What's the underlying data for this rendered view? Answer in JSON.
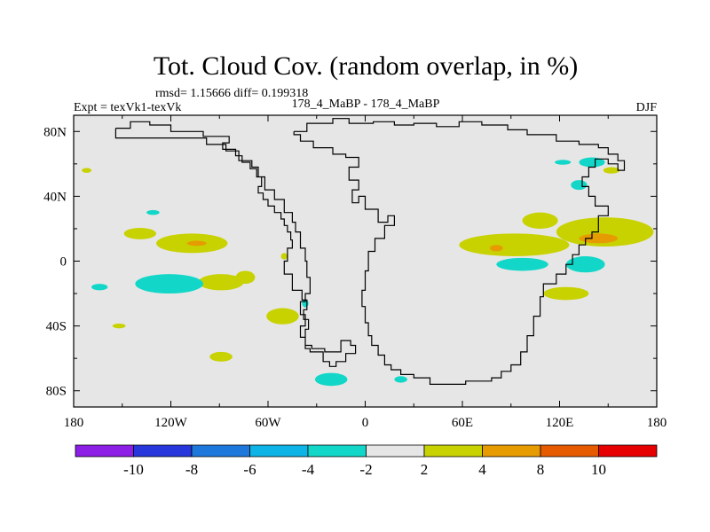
{
  "chart_data": {
    "type": "map",
    "title": "Tot. Cloud Cov. (random overlap, in %)",
    "stats_line": "rmsd= 1.15666  diff= 0.199318",
    "left_label": "Expt = texVk1-texVk",
    "center_label": "178_4_MaBP - 178_4_MaBP",
    "right_label": "DJF",
    "x_ticks": [
      "180",
      "120W",
      "60W",
      "0",
      "60E",
      "120E",
      "180"
    ],
    "x_tick_values": [
      -180,
      -120,
      -60,
      0,
      60,
      120,
      180
    ],
    "y_ticks": [
      "80N",
      "40N",
      "0",
      "40S",
      "80S"
    ],
    "y_tick_values": [
      80,
      40,
      0,
      -40,
      -80
    ],
    "lon_range": [
      -180,
      180
    ],
    "lat_range": [
      -90,
      90
    ],
    "background_color": "#e6e6e6",
    "colorbar": {
      "labels": [
        "-10",
        "-8",
        "-6",
        "-4",
        "-2",
        "2",
        "4",
        "8",
        "10"
      ],
      "colors": [
        "#8c1ee6",
        "#2837dc",
        "#1e78dc",
        "#0fb4e6",
        "#12d7c8",
        "#e6e6e6",
        "#c8d200",
        "#e69b00",
        "#e65a00",
        "#e60000"
      ]
    },
    "coastline_lonlat": [
      [
        -154,
        82
      ],
      [
        -145,
        82
      ],
      [
        -145,
        86
      ],
      [
        -133,
        86
      ],
      [
        -133,
        84
      ],
      [
        -120,
        84
      ],
      [
        -120,
        80
      ],
      [
        -100,
        80
      ],
      [
        -100,
        77
      ],
      [
        -84,
        77
      ],
      [
        -84,
        73
      ],
      [
        -88,
        73
      ],
      [
        -88,
        69
      ],
      [
        -80,
        69
      ],
      [
        -80,
        65
      ],
      [
        -76,
        65
      ],
      [
        -76,
        61
      ],
      [
        -71,
        61
      ],
      [
        -71,
        57
      ],
      [
        -67,
        57
      ],
      [
        -67,
        52
      ],
      [
        -64,
        52
      ],
      [
        -64,
        46
      ],
      [
        -66,
        46
      ],
      [
        -66,
        42
      ],
      [
        -63,
        42
      ],
      [
        -63,
        38
      ],
      [
        -60,
        38
      ],
      [
        -60,
        34
      ],
      [
        -56,
        34
      ],
      [
        -56,
        30
      ],
      [
        -52,
        30
      ],
      [
        -52,
        26
      ],
      [
        -50,
        26
      ],
      [
        -50,
        22
      ],
      [
        -48,
        22
      ],
      [
        -48,
        18
      ],
      [
        -46,
        18
      ],
      [
        -46,
        13
      ],
      [
        -45,
        13
      ],
      [
        -45,
        8
      ],
      [
        -48,
        8
      ],
      [
        -48,
        0
      ],
      [
        -50,
        0
      ],
      [
        -50,
        -8
      ],
      [
        -45,
        -8
      ],
      [
        -45,
        -18
      ],
      [
        -39,
        -18
      ],
      [
        -39,
        -24
      ],
      [
        -36,
        -24
      ],
      [
        -36,
        -30
      ],
      [
        -38,
        -30
      ],
      [
        -38,
        -36
      ],
      [
        -35,
        -36
      ],
      [
        -35,
        -42
      ],
      [
        -37,
        -42
      ],
      [
        -37,
        -52
      ],
      [
        -33,
        -52
      ],
      [
        -33,
        -54
      ],
      [
        -25,
        -54
      ],
      [
        -25,
        -56
      ],
      [
        -15,
        -56
      ],
      [
        -15,
        -49
      ],
      [
        -9,
        -49
      ],
      [
        -9,
        -52
      ],
      [
        -6,
        -52
      ],
      [
        -6,
        -57
      ],
      [
        -12,
        -57
      ],
      [
        -12,
        -62
      ],
      [
        -18,
        -62
      ],
      [
        -18,
        -65
      ],
      [
        -22,
        -65
      ],
      [
        -22,
        -62
      ],
      [
        -26,
        -62
      ],
      [
        -26,
        -56
      ],
      [
        -34,
        -56
      ],
      [
        -34,
        -54
      ],
      [
        -37,
        -54
      ],
      [
        -37,
        -47
      ],
      [
        -40,
        -47
      ],
      [
        -40,
        -40
      ],
      [
        -37,
        -40
      ],
      [
        -37,
        -33
      ],
      [
        -40,
        -33
      ],
      [
        -40,
        -25
      ],
      [
        -37,
        -25
      ],
      [
        -37,
        -20
      ],
      [
        -34,
        -20
      ],
      [
        -34,
        -10
      ],
      [
        -36,
        -10
      ],
      [
        -36,
        0
      ],
      [
        -37,
        0
      ],
      [
        -37,
        8
      ],
      [
        -40,
        8
      ],
      [
        -40,
        18
      ],
      [
        -43,
        18
      ],
      [
        -43,
        24
      ],
      [
        -45,
        24
      ],
      [
        -45,
        30
      ],
      [
        -50,
        30
      ],
      [
        -50,
        38
      ],
      [
        -56,
        38
      ],
      [
        -56,
        44
      ],
      [
        -62,
        44
      ],
      [
        -62,
        52
      ],
      [
        -66,
        52
      ],
      [
        -66,
        58
      ],
      [
        -70,
        58
      ],
      [
        -70,
        62
      ],
      [
        -78,
        62
      ],
      [
        -78,
        68
      ],
      [
        -86,
        68
      ],
      [
        -86,
        72
      ],
      [
        -98,
        72
      ],
      [
        -98,
        76
      ],
      [
        -154,
        76
      ],
      [
        -154,
        82
      ]
    ],
    "coastline2_lonlat": [
      [
        -44,
        80
      ],
      [
        -36,
        80
      ],
      [
        -36,
        85
      ],
      [
        -20,
        85
      ],
      [
        -20,
        88
      ],
      [
        -10,
        88
      ],
      [
        -10,
        85
      ],
      [
        5,
        85
      ],
      [
        5,
        86
      ],
      [
        18,
        86
      ],
      [
        18,
        84
      ],
      [
        30,
        84
      ],
      [
        30,
        85
      ],
      [
        44,
        85
      ],
      [
        44,
        83
      ],
      [
        58,
        83
      ],
      [
        58,
        86
      ],
      [
        72,
        86
      ],
      [
        72,
        84
      ],
      [
        88,
        84
      ],
      [
        88,
        81
      ],
      [
        100,
        81
      ],
      [
        100,
        78
      ],
      [
        118,
        78
      ],
      [
        118,
        74
      ],
      [
        132,
        74
      ],
      [
        132,
        72
      ],
      [
        144,
        72
      ],
      [
        144,
        70
      ],
      [
        150,
        70
      ],
      [
        150,
        66
      ],
      [
        156,
        66
      ],
      [
        156,
        62
      ],
      [
        160,
        62
      ],
      [
        160,
        56
      ],
      [
        156,
        56
      ],
      [
        156,
        60
      ],
      [
        150,
        60
      ],
      [
        150,
        63
      ],
      [
        142,
        63
      ],
      [
        142,
        58
      ],
      [
        138,
        58
      ],
      [
        138,
        52
      ],
      [
        134,
        52
      ],
      [
        134,
        46
      ],
      [
        138,
        46
      ],
      [
        138,
        40
      ],
      [
        142,
        40
      ],
      [
        142,
        34
      ],
      [
        150,
        34
      ],
      [
        150,
        28
      ],
      [
        144,
        28
      ],
      [
        144,
        18
      ],
      [
        140,
        18
      ],
      [
        140,
        14
      ],
      [
        136,
        14
      ],
      [
        136,
        10
      ],
      [
        132,
        10
      ],
      [
        132,
        4
      ],
      [
        128,
        4
      ],
      [
        128,
        -2
      ],
      [
        124,
        -2
      ],
      [
        124,
        -8
      ],
      [
        118,
        -8
      ],
      [
        118,
        -14
      ],
      [
        110,
        -14
      ],
      [
        110,
        -22
      ],
      [
        108,
        -22
      ],
      [
        108,
        -34
      ],
      [
        104,
        -34
      ],
      [
        104,
        -46
      ],
      [
        100,
        -46
      ],
      [
        100,
        -56
      ],
      [
        96,
        -56
      ],
      [
        96,
        -64
      ],
      [
        90,
        -64
      ],
      [
        90,
        -68
      ],
      [
        84,
        -68
      ],
      [
        84,
        -72
      ],
      [
        78,
        -72
      ],
      [
        78,
        -74
      ],
      [
        62,
        -74
      ],
      [
        62,
        -76
      ],
      [
        40,
        -76
      ],
      [
        40,
        -72
      ],
      [
        30,
        -72
      ],
      [
        30,
        -70
      ],
      [
        22,
        -70
      ],
      [
        22,
        -67
      ],
      [
        16,
        -67
      ],
      [
        16,
        -64
      ],
      [
        12,
        -64
      ],
      [
        12,
        -58
      ],
      [
        8,
        -58
      ],
      [
        8,
        -52
      ],
      [
        4,
        -52
      ],
      [
        4,
        -46
      ],
      [
        2,
        -46
      ],
      [
        2,
        -38
      ],
      [
        0,
        -38
      ],
      [
        0,
        -28
      ],
      [
        -2,
        -28
      ],
      [
        -2,
        -18
      ],
      [
        0,
        -18
      ],
      [
        0,
        -6
      ],
      [
        2,
        -6
      ],
      [
        2,
        6
      ],
      [
        6,
        6
      ],
      [
        6,
        14
      ],
      [
        12,
        14
      ],
      [
        12,
        22
      ],
      [
        18,
        22
      ],
      [
        18,
        28
      ],
      [
        14,
        28
      ],
      [
        14,
        24
      ],
      [
        8,
        24
      ],
      [
        8,
        32
      ],
      [
        0,
        32
      ],
      [
        0,
        40
      ],
      [
        -4,
        40
      ],
      [
        -4,
        36
      ],
      [
        -8,
        36
      ],
      [
        -8,
        44
      ],
      [
        -4,
        44
      ],
      [
        -4,
        50
      ],
      [
        -10,
        50
      ],
      [
        -10,
        58
      ],
      [
        -4,
        58
      ],
      [
        -4,
        64
      ],
      [
        -12,
        64
      ],
      [
        -12,
        66
      ],
      [
        -20,
        66
      ],
      [
        -20,
        70
      ],
      [
        -32,
        70
      ],
      [
        -32,
        74
      ],
      [
        -40,
        74
      ],
      [
        -40,
        78
      ],
      [
        -44,
        78
      ],
      [
        -44,
        80
      ]
    ],
    "anomaly_blobs": [
      {
        "level": "+2..4",
        "color": "#c8d200",
        "lon": -139,
        "lat": 17,
        "rx": 10,
        "ry": 3.5
      },
      {
        "level": "+2..4",
        "color": "#c8d200",
        "lon": -107,
        "lat": 11,
        "rx": 22,
        "ry": 6
      },
      {
        "level": "+4..8",
        "color": "#e69b00",
        "lon": -104,
        "lat": 11,
        "rx": 6,
        "ry": 1.6
      },
      {
        "level": "+2..4",
        "color": "#c8d200",
        "lon": -89,
        "lat": -13,
        "rx": 14,
        "ry": 5
      },
      {
        "level": "+2..4",
        "color": "#c8d200",
        "lon": -74,
        "lat": -10,
        "rx": 6,
        "ry": 4
      },
      {
        "level": "+2..4",
        "color": "#c8d200",
        "lon": -51,
        "lat": -34,
        "rx": 10,
        "ry": 5
      },
      {
        "level": "+2..4",
        "color": "#c8d200",
        "lon": -152,
        "lat": -40,
        "rx": 4,
        "ry": 1.5
      },
      {
        "level": "+2..4",
        "color": "#c8d200",
        "lon": -89,
        "lat": -59,
        "rx": 7,
        "ry": 3
      },
      {
        "level": "-2..-4",
        "color": "#12d7c8",
        "lon": -121,
        "lat": -14,
        "rx": 21,
        "ry": 6
      },
      {
        "level": "-2..-4",
        "color": "#12d7c8",
        "lon": -164,
        "lat": -16,
        "rx": 5,
        "ry": 2
      },
      {
        "level": "-2..-4",
        "color": "#12d7c8",
        "lon": -131,
        "lat": 30,
        "rx": 4,
        "ry": 1.5
      },
      {
        "level": "-2..-4",
        "color": "#12d7c8",
        "lon": -21,
        "lat": -73,
        "rx": 10,
        "ry": 4
      },
      {
        "level": "-2..-4",
        "color": "#12d7c8",
        "lon": 22,
        "lat": -73,
        "rx": 4,
        "ry": 2
      },
      {
        "level": "+2..4",
        "color": "#c8d200",
        "lon": 92,
        "lat": 10,
        "rx": 34,
        "ry": 7
      },
      {
        "level": "+2..4",
        "color": "#c8d200",
        "lon": 108,
        "lat": 25,
        "rx": 11,
        "ry": 5
      },
      {
        "level": "+2..4",
        "color": "#c8d200",
        "lon": 148,
        "lat": 18,
        "rx": 30,
        "ry": 9
      },
      {
        "level": "+4..8",
        "color": "#e69b00",
        "lon": 144,
        "lat": 14,
        "rx": 12,
        "ry": 3
      },
      {
        "level": "+4..8",
        "color": "#e69b00",
        "lon": 81,
        "lat": 8,
        "rx": 4,
        "ry": 2
      },
      {
        "level": "+2..4",
        "color": "#c8d200",
        "lon": 124,
        "lat": -20,
        "rx": 14,
        "ry": 4
      },
      {
        "level": "-2..-4",
        "color": "#12d7c8",
        "lon": 97,
        "lat": -2,
        "rx": 16,
        "ry": 4
      },
      {
        "level": "-2..-4",
        "color": "#12d7c8",
        "lon": 136,
        "lat": -2,
        "rx": 12,
        "ry": 5
      },
      {
        "level": "-2..-4",
        "color": "#12d7c8",
        "lon": 132,
        "lat": 47,
        "rx": 5,
        "ry": 3
      },
      {
        "level": "-2..-4",
        "color": "#12d7c8",
        "lon": 140,
        "lat": 61,
        "rx": 8,
        "ry": 3
      },
      {
        "level": "-2..-4",
        "color": "#12d7c8",
        "lon": 122,
        "lat": 61,
        "rx": 5,
        "ry": 1.5
      },
      {
        "level": "+2..4",
        "color": "#c8d200",
        "lon": 152,
        "lat": 56,
        "rx": 5,
        "ry": 2
      },
      {
        "level": "+2..4",
        "color": "#c8d200",
        "lon": -172,
        "lat": 56,
        "rx": 3,
        "ry": 1.5
      },
      {
        "level": "-2..-4",
        "color": "#12d7c8",
        "lon": -37,
        "lat": -26,
        "rx": 2,
        "ry": 2.5
      },
      {
        "level": "+2..4",
        "color": "#c8d200",
        "lon": -50,
        "lat": 3,
        "rx": 2,
        "ry": 2
      }
    ]
  }
}
